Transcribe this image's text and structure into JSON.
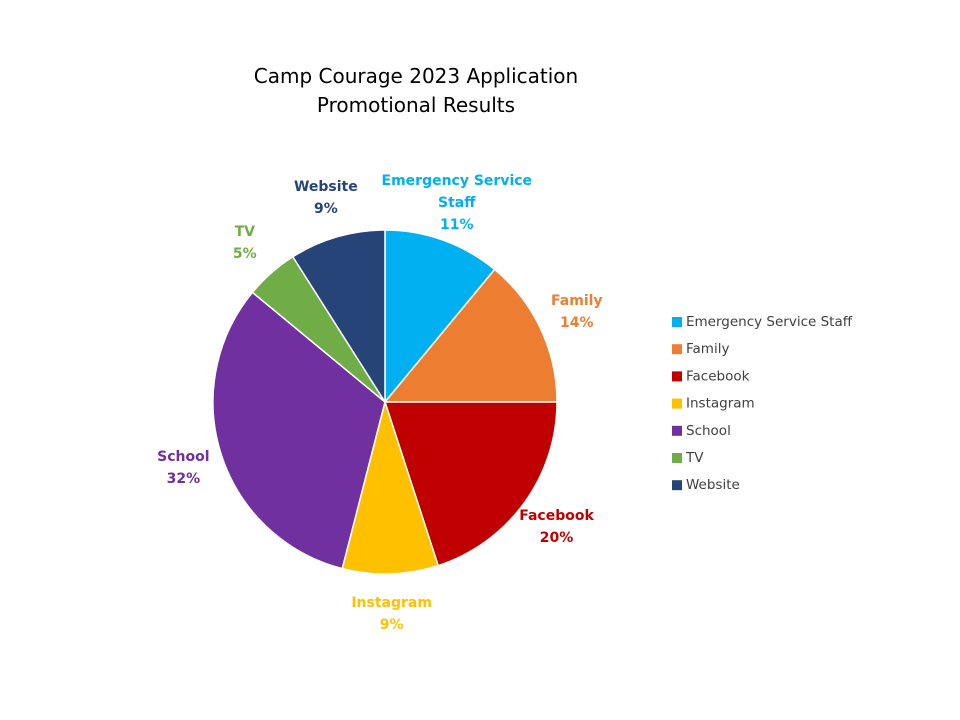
{
  "chart_data": {
    "type": "pie",
    "title": "Camp Courage 2023 Application Promotional Results",
    "categories": [
      "Emergency Service Staff",
      "Family",
      "Facebook",
      "Instagram",
      "School",
      "TV",
      "Website"
    ],
    "values": [
      11,
      14,
      20,
      9,
      32,
      5,
      9
    ],
    "value_labels": [
      "11%",
      "14%",
      "20%",
      "9%",
      "32%",
      "5%",
      "9%"
    ],
    "colors": [
      "#00b0f0",
      "#ed7d31",
      "#c00000",
      "#ffc000",
      "#7030a0",
      "#70ad47",
      "#264478"
    ],
    "legend": "right"
  }
}
